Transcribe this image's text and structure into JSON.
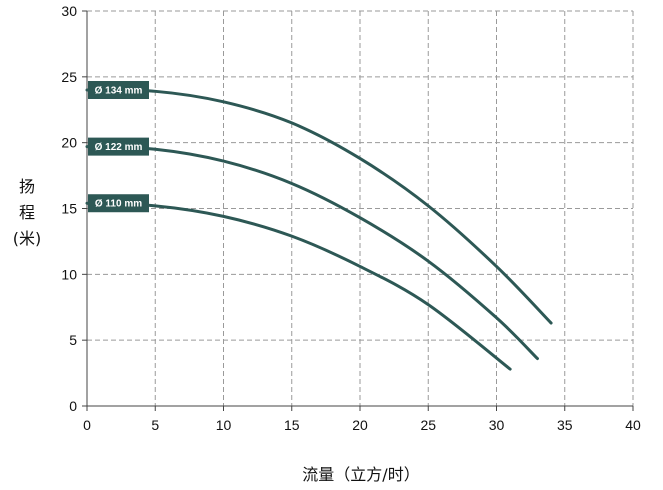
{
  "chart_data": {
    "type": "line",
    "title": "",
    "xlabel": "流量（立方/时）",
    "ylabel_lines": [
      "扬",
      "程",
      "(米)"
    ],
    "xlim": [
      0,
      40
    ],
    "ylim": [
      0,
      30
    ],
    "xticks": [
      0,
      5,
      10,
      15,
      20,
      25,
      30,
      35,
      40
    ],
    "yticks": [
      0,
      5,
      10,
      15,
      20,
      25,
      30
    ],
    "grid": true,
    "line_color": "#2d5855",
    "badge_color": "#2d5855",
    "series": [
      {
        "name": "Ø 134 mm",
        "x": [
          0,
          5,
          10,
          15,
          20,
          25,
          30,
          34
        ],
        "y": [
          24,
          23.9,
          23.1,
          21.5,
          18.8,
          15.2,
          10.6,
          6.3
        ]
      },
      {
        "name": "Ø 122 mm",
        "x": [
          0,
          5,
          10,
          15,
          20,
          25,
          30,
          33
        ],
        "y": [
          19.7,
          19.5,
          18.6,
          16.9,
          14.3,
          11.0,
          6.7,
          3.6
        ]
      },
      {
        "name": "Ø 110 mm",
        "x": [
          0,
          5,
          10,
          15,
          20,
          25,
          31
        ],
        "y": [
          15.4,
          15.2,
          14.4,
          12.9,
          10.6,
          7.7,
          2.8
        ]
      }
    ]
  }
}
